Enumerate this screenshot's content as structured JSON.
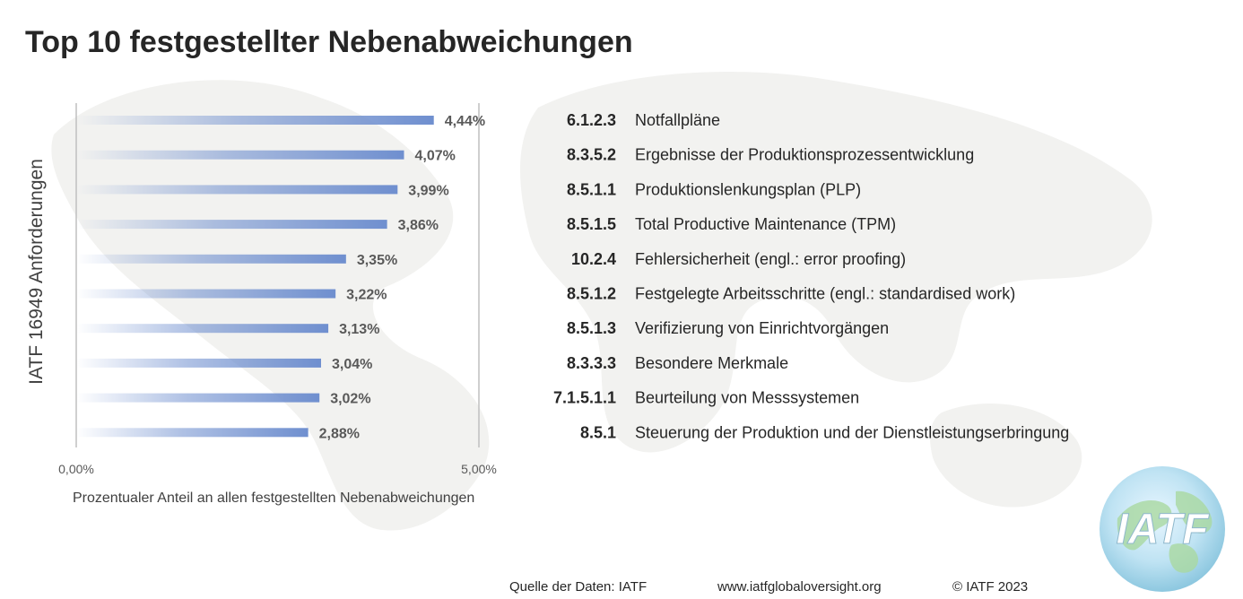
{
  "title": "Top 10 festgestellter Nebenabweichungen",
  "chart_data": {
    "type": "bar",
    "orientation": "horizontal",
    "categories": [
      "6.1.2.3",
      "8.3.5.2",
      "8.5.1.1",
      "8.5.1.5",
      "10.2.4",
      "8.5.1.2",
      "8.5.1.3",
      "8.3.3.3",
      "7.1.5.1.1",
      "8.5.1"
    ],
    "descriptions": [
      "Notfallpläne",
      "Ergebnisse der Produktionsprozessentwicklung",
      "Produktionslenkungsplan (PLP)",
      "Total Productive Maintenance (TPM)",
      "Fehlersicherheit (engl.: error proofing)",
      "Festgelegte Arbeitsschritte (engl.: standardised work)",
      "Verifizierung von Einrichtvorgängen",
      "Besondere Merkmale",
      "Beurteilung von Messsystemen",
      "Steuerung der Produktion und der Dienstleistungserbringung"
    ],
    "values": [
      4.44,
      4.07,
      3.99,
      3.86,
      3.35,
      3.22,
      3.13,
      3.04,
      3.02,
      2.88
    ],
    "value_labels": [
      "4,44%",
      "4,07%",
      "3,99%",
      "3,86%",
      "3,35%",
      "3,22%",
      "3,13%",
      "3,04%",
      "3,02%",
      "2,88%"
    ],
    "xlim": [
      0,
      5
    ],
    "xtick_labels": [
      "0,00%",
      "5,00%"
    ],
    "xlabel": "Prozentualer Anteil an allen festgestellten Nebenabweichungen",
    "ylabel": "IATF 16949 Anforderungen",
    "bar_color": "#6f8fcf"
  },
  "footer": {
    "source": "Quelle der Daten: IATF",
    "website": "www.iatfglobaloversight.org",
    "copyright": "© IATF 2023"
  },
  "logo": {
    "text": "IATF",
    "icon": "globe-logo-icon"
  }
}
